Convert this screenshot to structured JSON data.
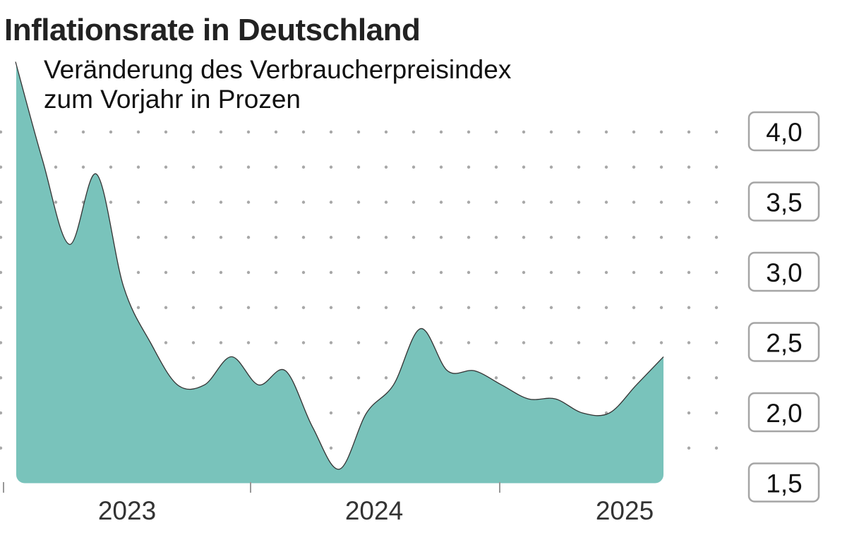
{
  "chart_data": {
    "type": "area",
    "title": "Inflationsrate in Deutschland",
    "subtitle": [
      "Veränderung des Verbraucherpreisindex",
      "zum Vorjahr in Prozen"
    ],
    "xlabel": "",
    "ylabel": "",
    "x_tick_labels": [
      "2023",
      "2024",
      "2025"
    ],
    "y_tick_labels": [
      "4,0",
      "3,5",
      "3,0",
      "2,5",
      "2,0",
      "1,5"
    ],
    "y_ticks": [
      4.0,
      3.5,
      3.0,
      2.5,
      2.0,
      1.5
    ],
    "ylim": [
      1.5,
      4.0
    ],
    "grid": "dotted",
    "values": [
      4.5,
      3.8,
      3.2,
      3.7,
      2.9,
      2.5,
      2.2,
      2.2,
      2.4,
      2.2,
      2.3,
      1.9,
      1.6,
      2.0,
      2.2,
      2.6,
      2.3,
      2.3,
      2.2,
      2.1,
      2.1,
      2.0,
      2.0,
      2.2,
      2.4
    ],
    "fill_color": "#79c3bb",
    "line_color": "#333333"
  }
}
